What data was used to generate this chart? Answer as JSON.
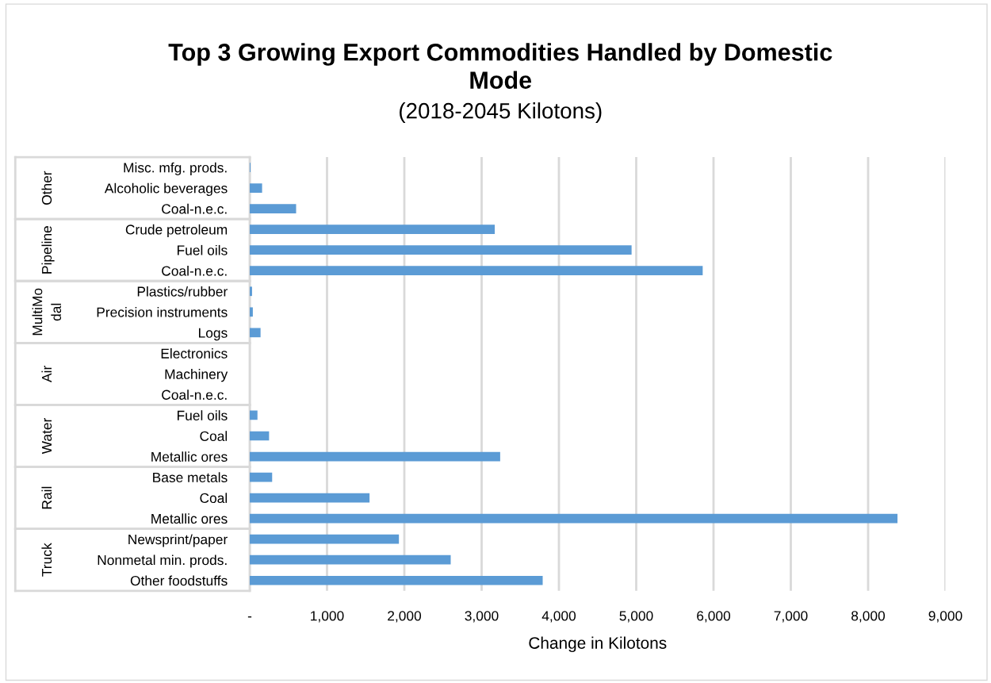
{
  "chart_data": {
    "type": "bar",
    "orientation": "horizontal",
    "title": "Top 3 Growing Export Commodities Handled by Domestic Mode",
    "subtitle": "(2018-2045 Kilotons)",
    "xlabel": "Change in Kilotons",
    "categories": [
      "Misc. mfg. prods.",
      "Alcoholic beverages",
      "Coal-n.e.c.",
      "Crude petroleum",
      "Fuel oils",
      "Coal-n.e.c.",
      "Plastics/rubber",
      "Precision instruments",
      "Logs",
      "Electronics",
      "Machinery",
      "Coal-n.e.c.",
      "Fuel oils",
      "Coal",
      "Metallic ores",
      "Base metals",
      "Coal",
      "Metallic ores",
      "Newsprint/paper",
      "Nonmetal min. prods.",
      "Other foodstuffs"
    ],
    "values": [
      10,
      160,
      600,
      3170,
      4940,
      5860,
      30,
      40,
      140,
      0,
      0,
      0,
      100,
      250,
      3240,
      290,
      1550,
      8380,
      1930,
      2600,
      3790
    ],
    "color": "#5b9bd5",
    "annotations": [
      "Other",
      "Pipeline",
      "MultiMo\ndal",
      "Air",
      "Water",
      "Rail",
      "Truck"
    ],
    "xlim": [
      0,
      9000
    ],
    "xticks": [
      {
        "value": 0,
        "label": "-"
      },
      {
        "value": 1000,
        "label": "1,000"
      },
      {
        "value": 2000,
        "label": "2,000"
      },
      {
        "value": 3000,
        "label": "3,000"
      },
      {
        "value": 4000,
        "label": "4,000"
      },
      {
        "value": 5000,
        "label": "5,000"
      },
      {
        "value": 6000,
        "label": "6,000"
      },
      {
        "value": 7000,
        "label": "7,000"
      },
      {
        "value": 8000,
        "label": "8,000"
      },
      {
        "value": 9000,
        "label": "9,000"
      }
    ],
    "grid": "x",
    "legend": false
  }
}
